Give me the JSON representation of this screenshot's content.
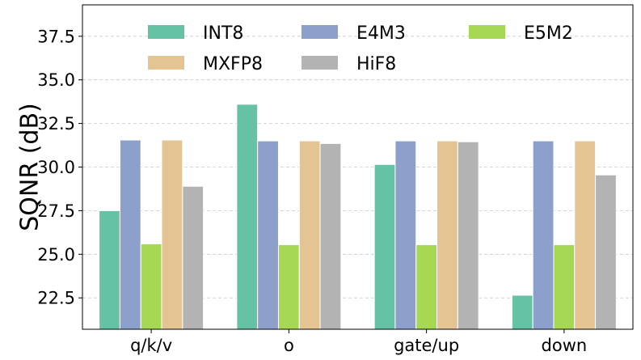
{
  "chart_data": {
    "type": "bar",
    "categories": [
      "q/k/v",
      "o",
      "gate/up",
      "down"
    ],
    "series": [
      {
        "name": "INT8",
        "color": "#66c2a5",
        "values": [
          27.5,
          33.6,
          30.15,
          22.65
        ]
      },
      {
        "name": "E4M3",
        "color": "#8da0cb",
        "values": [
          31.55,
          31.5,
          31.5,
          31.5
        ]
      },
      {
        "name": "E5M2",
        "color": "#a6d854",
        "values": [
          25.6,
          25.55,
          25.55,
          25.55
        ]
      },
      {
        "name": "MXFP8",
        "color": "#e5c494",
        "values": [
          31.55,
          31.5,
          31.5,
          31.5
        ]
      },
      {
        "name": "HiF8",
        "color": "#b3b3b3",
        "values": [
          28.9,
          31.35,
          31.45,
          29.55
        ]
      }
    ],
    "title": "",
    "xlabel": "",
    "ylabel": "SQNR (dB)",
    "ylim": [
      20.7,
      39.3
    ],
    "yticks": [
      "22.5",
      "25.0",
      "27.5",
      "30.0",
      "32.5",
      "35.0",
      "37.5"
    ],
    "grid": "horizontal dashed",
    "legend": {
      "placement": "top",
      "columns": 3
    }
  }
}
